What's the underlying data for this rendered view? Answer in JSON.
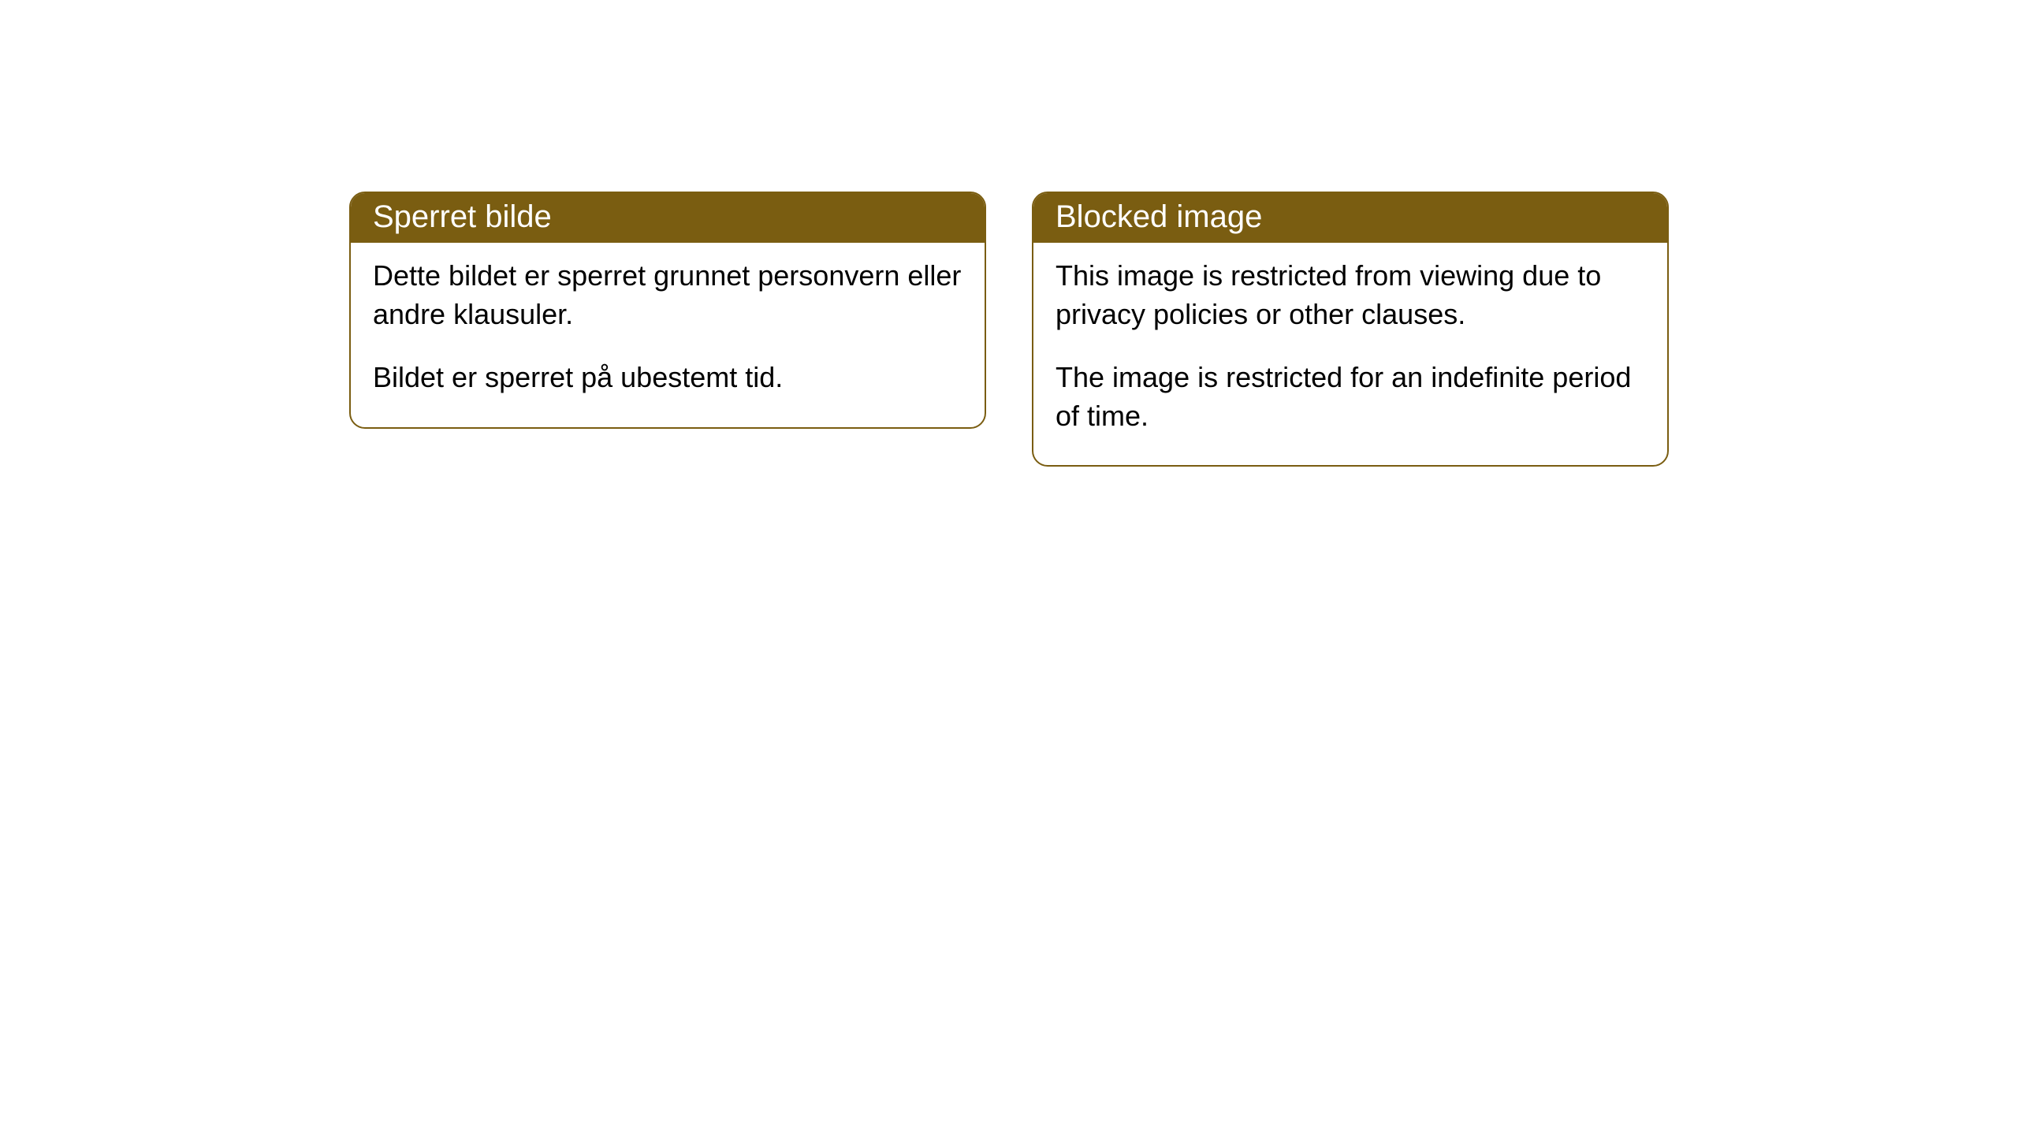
{
  "cards": [
    {
      "title": "Sperret bilde",
      "paragraph1": "Dette bildet er sperret grunnet personvern eller andre klausuler.",
      "paragraph2": "Bildet er sperret på ubestemt tid."
    },
    {
      "title": "Blocked image",
      "paragraph1": "This image is restricted from viewing due to privacy policies or other clauses.",
      "paragraph2": "The image is restricted for an indefinite period of time."
    }
  ],
  "style": {
    "accent_color": "#7a5d11",
    "background_color": "#ffffff",
    "border_radius": "20px",
    "title_fontsize": 40,
    "body_fontsize": 36,
    "title_color": "#ffffff",
    "body_color": "#000000"
  }
}
